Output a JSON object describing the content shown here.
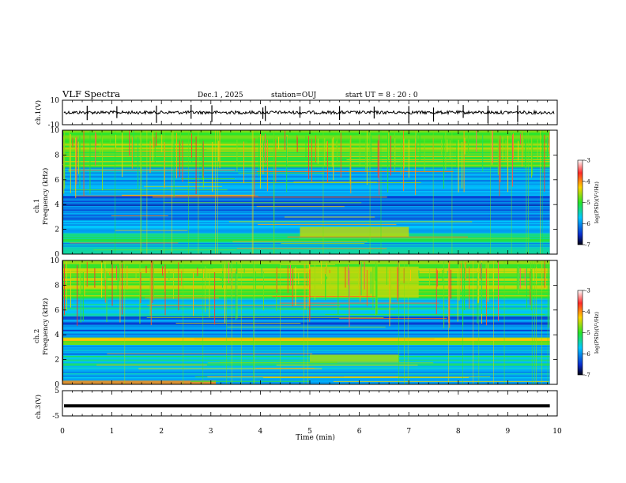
{
  "header": {
    "title": "VLF Spectra",
    "date": "Dec.1 , 2025",
    "station": "station=OUJ",
    "start": "start UT = 8 : 20 : 0"
  },
  "colorbar": {
    "label": "log(PSD)(V²/Hz)",
    "ticks": [
      "-3",
      "-4",
      "-5",
      "-6",
      "-7"
    ],
    "colors": [
      "#ffffff",
      "#ff2a2a",
      "#ffd200",
      "#28e628",
      "#00c8ff",
      "#0a2ccc",
      "#000010"
    ]
  },
  "chart_data": [
    {
      "type": "line",
      "panel": "ch1-waveform",
      "ylabel": "ch.1(V)",
      "ylim": [
        -10,
        10
      ],
      "yticks": [
        "10",
        "-10"
      ],
      "baseline": 0,
      "color": "#000000"
    },
    {
      "type": "heatmap",
      "panel": "ch1-spectrogram",
      "ylabel": "ch.1\nFrequency (kHz)",
      "ylim": [
        0,
        10
      ],
      "yticks": [
        "0",
        "2",
        "4",
        "6",
        "8",
        "10"
      ],
      "xlim": [
        0,
        10
      ],
      "bands": [
        {
          "from": 0.0,
          "to": 0.5,
          "level": 0.42
        },
        {
          "from": 0.5,
          "to": 1.0,
          "level": 0.3
        },
        {
          "from": 1.0,
          "to": 1.6,
          "level": 0.4
        },
        {
          "from": 1.6,
          "to": 2.2,
          "level": 0.34
        },
        {
          "from": 2.2,
          "to": 2.8,
          "level": 0.28
        },
        {
          "from": 2.8,
          "to": 3.4,
          "level": 0.22
        },
        {
          "from": 3.4,
          "to": 4.0,
          "level": 0.18
        },
        {
          "from": 4.0,
          "to": 5.5,
          "level": 0.24
        },
        {
          "from": 5.5,
          "to": 7.0,
          "level": 0.3
        },
        {
          "from": 7.0,
          "to": 10.0,
          "level": 0.55
        }
      ],
      "features": [
        {
          "t0": 4.8,
          "t1": 7.0,
          "f0": 1.4,
          "f1": 2.2,
          "level": 0.62
        }
      ]
    },
    {
      "type": "heatmap",
      "panel": "ch2-spectrogram",
      "ylabel": "ch.2\nFrequency (kHz)",
      "ylim": [
        0,
        10
      ],
      "yticks": [
        "0",
        "2",
        "4",
        "6",
        "8",
        "10"
      ],
      "xlim": [
        0,
        10
      ],
      "bands": [
        {
          "from": 0.0,
          "to": 0.5,
          "level": 0.34
        },
        {
          "from": 0.5,
          "to": 1.4,
          "level": 0.3
        },
        {
          "from": 1.4,
          "to": 2.4,
          "level": 0.38
        },
        {
          "from": 2.4,
          "to": 3.2,
          "level": 0.28
        },
        {
          "from": 3.2,
          "to": 3.8,
          "level": 0.62
        },
        {
          "from": 3.8,
          "to": 5.5,
          "level": 0.22
        },
        {
          "from": 5.5,
          "to": 7.0,
          "level": 0.34
        },
        {
          "from": 7.0,
          "to": 10.0,
          "level": 0.56
        }
      ],
      "features": [
        {
          "t0": 0.0,
          "t1": 3.1,
          "f0": 0.0,
          "f1": 0.3,
          "level": 0.75
        },
        {
          "t0": 5.0,
          "t1": 6.8,
          "f0": 1.8,
          "f1": 2.4,
          "level": 0.6
        },
        {
          "t0": 5.0,
          "t1": 7.2,
          "f0": 7.0,
          "f1": 9.5,
          "level": 0.62
        }
      ]
    },
    {
      "type": "line",
      "panel": "ch3-waveform",
      "ylabel": "ch.3(V)",
      "ylim": [
        -5,
        5
      ],
      "yticks": [
        "5",
        "-5"
      ],
      "baseline": -1,
      "color": "#000000"
    }
  ],
  "xaxis": {
    "label": "Time (min)",
    "ticks": [
      "0",
      "1",
      "2",
      "3",
      "4",
      "5",
      "6",
      "7",
      "8",
      "9",
      "10"
    ],
    "xlim": [
      0,
      10
    ]
  }
}
